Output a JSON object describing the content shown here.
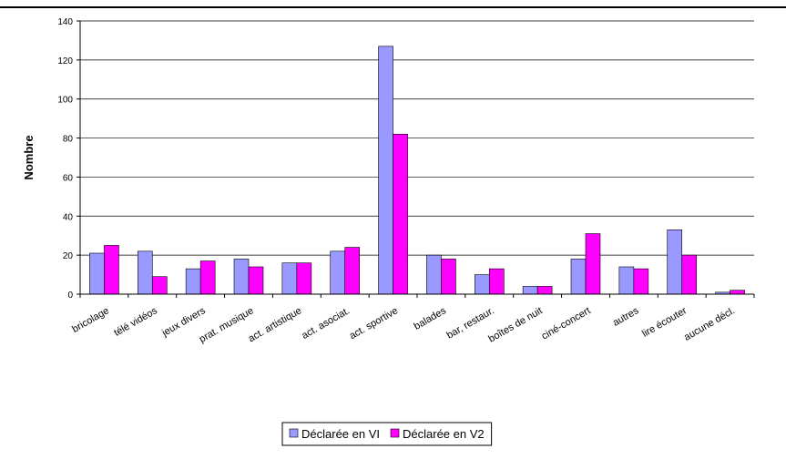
{
  "chart_data": {
    "type": "bar",
    "y_label": "Nombre",
    "categories": [
      "bricolage",
      "télé vidéos",
      "jeux divers",
      "prat. musique",
      "act. artistique",
      "act. asociat.",
      "act. sportive",
      "balades",
      "bar, restaur.",
      "boîtes de nuit",
      "ciné-concert",
      "autres",
      "lire écouter",
      "aucune décl."
    ],
    "series": [
      {
        "name": "Déclarée en VI",
        "color": "#9999ff",
        "values": [
          21,
          22,
          13,
          18,
          16,
          22,
          127,
          20,
          10,
          4,
          18,
          14,
          33,
          1
        ]
      },
      {
        "name": "Déclarée en V2",
        "color": "#ff00ff",
        "values": [
          25,
          9,
          17,
          14,
          16,
          24,
          82,
          18,
          13,
          4,
          31,
          13,
          20,
          2
        ]
      }
    ],
    "ylim": [
      0,
      140
    ],
    "yticks": [
      0,
      20,
      40,
      60,
      80,
      100,
      120,
      140
    ],
    "grid": true,
    "legend": "bottom"
  }
}
